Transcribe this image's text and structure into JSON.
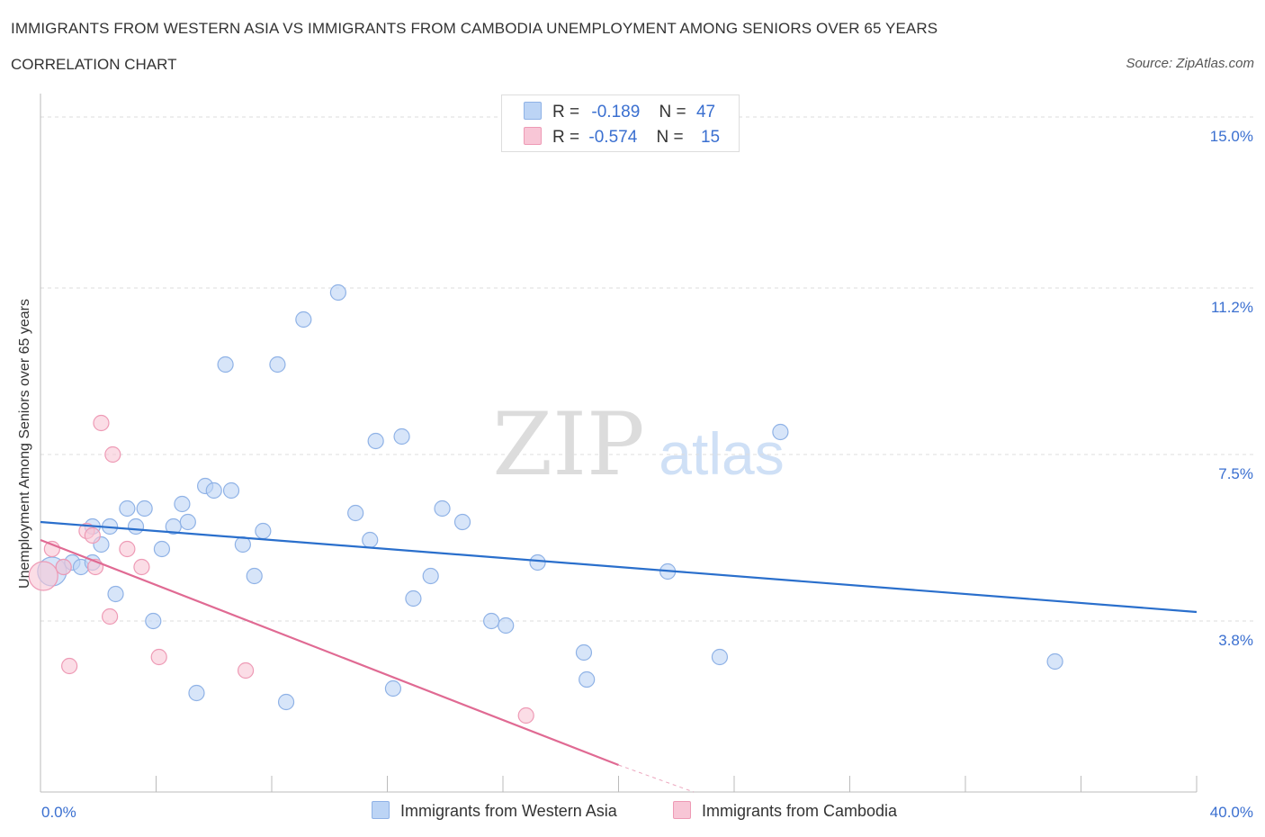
{
  "title": "IMMIGRANTS FROM WESTERN ASIA VS IMMIGRANTS FROM CAMBODIA UNEMPLOYMENT AMONG SENIORS OVER 65 YEARS",
  "subtitle": "CORRELATION CHART",
  "source": "Source: ZipAtlas.com",
  "watermark": {
    "zip": "ZIP",
    "atlas": "atlas"
  },
  "legend": {
    "r_label": "R =",
    "n_label": "N =",
    "series1": {
      "r": "-0.189",
      "n": "47"
    },
    "series2": {
      "r": "-0.574",
      "n": "15"
    }
  },
  "colors": {
    "blue_fill": "#bcd4f5",
    "blue_stroke": "#8fb2e6",
    "blue_line": "#2a6fcc",
    "pink_fill": "#f8c6d6",
    "pink_stroke": "#ee9ab5",
    "pink_line": "#e06a93",
    "axis_text": "#3a6fd0"
  },
  "chart_data": {
    "type": "scatter",
    "title": "IMMIGRANTS FROM WESTERN ASIA VS IMMIGRANTS FROM CAMBODIA UNEMPLOYMENT AMONG SENIORS OVER 65 YEARS",
    "xlabel": "",
    "ylabel": "Unemployment Among Seniors over 65 years",
    "xlim": [
      0,
      40
    ],
    "ylim": [
      0,
      15
    ],
    "x_tick_labels": [
      "0.0%",
      "40.0%"
    ],
    "y_ticks": [
      {
        "value": 3.8,
        "label": "3.8%"
      },
      {
        "value": 7.5,
        "label": "7.5%"
      },
      {
        "value": 11.2,
        "label": "11.2%"
      },
      {
        "value": 15.0,
        "label": "15.0%"
      }
    ],
    "series": [
      {
        "name": "Immigrants from Western Asia",
        "color": "#bcd4f5",
        "points": [
          [
            0.4,
            4.9,
            3
          ],
          [
            0.8,
            5.0,
            1
          ],
          [
            1.1,
            5.1,
            1
          ],
          [
            1.4,
            5.0,
            1
          ],
          [
            1.8,
            5.1,
            1
          ],
          [
            1.8,
            5.9,
            1
          ],
          [
            2.1,
            5.5,
            1
          ],
          [
            2.4,
            5.9,
            1
          ],
          [
            2.6,
            4.4,
            1
          ],
          [
            3.0,
            6.3,
            1
          ],
          [
            3.3,
            5.9,
            1
          ],
          [
            3.6,
            6.3,
            1
          ],
          [
            3.9,
            3.8,
            1
          ],
          [
            4.2,
            5.4,
            1
          ],
          [
            4.6,
            5.9,
            1
          ],
          [
            4.9,
            6.4,
            1
          ],
          [
            5.1,
            6.0,
            1
          ],
          [
            5.4,
            2.2,
            1
          ],
          [
            5.7,
            6.8,
            1
          ],
          [
            6.0,
            6.7,
            1
          ],
          [
            6.4,
            9.5,
            1
          ],
          [
            6.6,
            6.7,
            1
          ],
          [
            7.0,
            5.5,
            1
          ],
          [
            7.4,
            4.8,
            1
          ],
          [
            7.7,
            5.8,
            1
          ],
          [
            8.2,
            9.5,
            1
          ],
          [
            8.5,
            2.0,
            1
          ],
          [
            9.1,
            10.5,
            1
          ],
          [
            10.3,
            11.1,
            1
          ],
          [
            10.9,
            6.2,
            1
          ],
          [
            11.4,
            5.6,
            1
          ],
          [
            11.6,
            7.8,
            1
          ],
          [
            12.2,
            2.3,
            1
          ],
          [
            12.5,
            7.9,
            1
          ],
          [
            12.9,
            4.3,
            1
          ],
          [
            13.5,
            4.8,
            1
          ],
          [
            13.9,
            6.3,
            1
          ],
          [
            14.6,
            6.0,
            1
          ],
          [
            15.6,
            3.8,
            1
          ],
          [
            16.1,
            3.7,
            1
          ],
          [
            17.2,
            5.1,
            1
          ],
          [
            18.8,
            3.1,
            1
          ],
          [
            18.9,
            2.5,
            1
          ],
          [
            21.7,
            4.9,
            1
          ],
          [
            23.5,
            3.0,
            1
          ],
          [
            25.6,
            8.0,
            1
          ],
          [
            35.1,
            2.9,
            1
          ]
        ],
        "trend": {
          "x": [
            0,
            40
          ],
          "y": [
            6.0,
            4.0
          ]
        }
      },
      {
        "name": "Immigrants from Cambodia",
        "color": "#f8c6d6",
        "points": [
          [
            0.1,
            4.8,
            3
          ],
          [
            0.4,
            5.4,
            1
          ],
          [
            0.8,
            5.0,
            1
          ],
          [
            1.0,
            2.8,
            1
          ],
          [
            1.6,
            5.8,
            1
          ],
          [
            1.8,
            5.7,
            1
          ],
          [
            2.1,
            8.2,
            1
          ],
          [
            2.4,
            3.9,
            1
          ],
          [
            2.5,
            7.5,
            1
          ],
          [
            3.0,
            5.4,
            1
          ],
          [
            3.5,
            5.0,
            1
          ],
          [
            4.1,
            3.0,
            1
          ],
          [
            7.1,
            2.7,
            1
          ],
          [
            16.8,
            1.7,
            1
          ],
          [
            1.9,
            5.0,
            1
          ]
        ],
        "trend": {
          "x": [
            0,
            20
          ],
          "y": [
            5.6,
            0.6
          ]
        },
        "trend_extension": {
          "x": [
            20,
            22.6
          ],
          "y": [
            0.6,
            0.0
          ]
        }
      }
    ],
    "legend_entries": [
      "Immigrants from Western Asia",
      "Immigrants from Cambodia"
    ]
  }
}
